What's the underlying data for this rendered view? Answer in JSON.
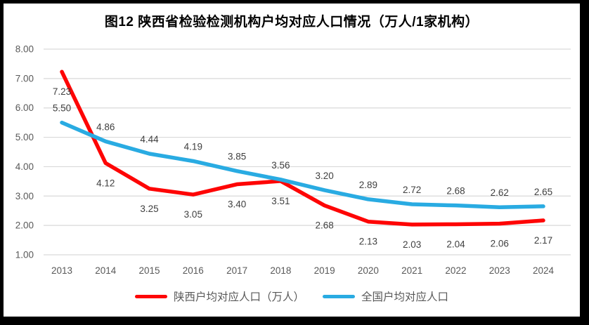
{
  "title": "图12  陕西省检验检测机构户均对应人口情况（万人/1家机构）",
  "colors": {
    "shaanxi_line": "#fe0505",
    "national_line": "#29abe2",
    "gridline": "#d9d9d9",
    "axis_text": "#595959",
    "data_label_text": "#3f3f3f",
    "title_text": "#000000",
    "frame": "#000000",
    "background": "#ffffff"
  },
  "legend": {
    "items": [
      {
        "label": "陕西户均对应人口（万人）",
        "series_key": "shaanxi_line"
      },
      {
        "label": "全国户均对应人口",
        "series_key": "national_line"
      }
    ]
  },
  "chart_data": {
    "type": "line",
    "categories": [
      "2013",
      "2014",
      "2015",
      "2016",
      "2017",
      "2018",
      "2019",
      "2020",
      "2021",
      "2022",
      "2023",
      "2024"
    ],
    "series": [
      {
        "name": "陕西户均对应人口（万人）",
        "color_key": "shaanxi_line",
        "values": [
          7.23,
          4.12,
          3.25,
          3.05,
          3.4,
          3.51,
          2.68,
          2.13,
          2.03,
          2.04,
          2.06,
          2.17
        ]
      },
      {
        "name": "全国户均对应人口",
        "color_key": "national_line",
        "values": [
          5.5,
          4.86,
          4.44,
          4.19,
          3.85,
          3.56,
          3.2,
          2.89,
          2.72,
          2.68,
          2.62,
          2.65
        ]
      }
    ],
    "title": "图12  陕西省检验检测机构户均对应人口情况（万人/1家机构）",
    "xlabel": "",
    "ylabel": "",
    "ylim": [
      1.0,
      8.0
    ],
    "ytick_step": 1.0,
    "ytick_labels": [
      "1.00",
      "2.00",
      "3.00",
      "4.00",
      "5.00",
      "6.00",
      "7.00",
      "8.00"
    ],
    "grid": true,
    "data_labels": true,
    "legend_position": "bottom"
  }
}
